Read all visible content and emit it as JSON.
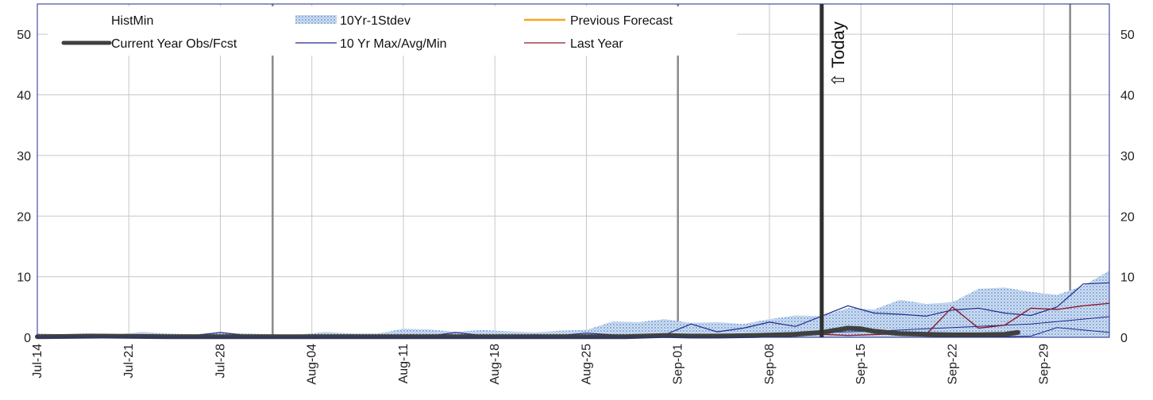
{
  "chart_data": {
    "type": "line",
    "title": "",
    "xlabel": "",
    "ylabel": "",
    "ylim": [
      0,
      55
    ],
    "y_ticks": [
      0,
      10,
      20,
      30,
      40,
      50
    ],
    "x_start": "Jul-14",
    "x_days": 82,
    "x_tick_labels": [
      "Jul-14",
      "Jul-21",
      "Jul-28",
      "Aug-04",
      "Aug-11",
      "Aug-18",
      "Aug-25",
      "Sep-01",
      "Sep-08",
      "Sep-15",
      "Sep-22",
      "Sep-29"
    ],
    "x_tick_days": [
      0,
      7,
      14,
      21,
      28,
      35,
      42,
      49,
      56,
      63,
      70,
      77
    ],
    "month_divider_days": [
      18,
      49,
      79
    ],
    "today_day": 60,
    "today_label": "⇧ Today",
    "grid": true,
    "legend": {
      "placement": "top",
      "items": [
        {
          "label": "HistMin",
          "swatch": "none"
        },
        {
          "label": "10Yr-1Stdev",
          "swatch": "pattern"
        },
        {
          "label": "Previous Forecast",
          "swatch": "line",
          "color": "#f5a623"
        },
        {
          "label": "Current Year Obs/Fcst",
          "swatch": "thick",
          "color": "#404040"
        },
        {
          "label": "10 Yr Max/Avg/Min",
          "swatch": "line",
          "color": "#1f2a8c"
        },
        {
          "label": "Last Year",
          "swatch": "line",
          "color": "#8b1a2b"
        }
      ]
    },
    "colors": {
      "stdev_fill": "#a9c4e8",
      "stdev_dots": "#5a86c4",
      "previous_forecast": "#f5a623",
      "current_year": "#404040",
      "ten_yr": "#1f2a8c",
      "last_year": "#8b1a2b",
      "grid": "#c8c8c8",
      "divider": "#8a8a8a",
      "frame": "#1f2a8c"
    },
    "series": {
      "stdev_upper": {
        "x": [
          0,
          2,
          4,
          6,
          8,
          10,
          12,
          14,
          16,
          18,
          20,
          22,
          24,
          26,
          28,
          30,
          32,
          34,
          36,
          38,
          40,
          42,
          44,
          46,
          48,
          50,
          52,
          54,
          56,
          58,
          60,
          62,
          64,
          66,
          68,
          70,
          72,
          74,
          76,
          78,
          80,
          82
        ],
        "y": [
          0.6,
          0.5,
          0.7,
          0.4,
          0.9,
          0.6,
          0.5,
          0.8,
          0.6,
          0.5,
          0.4,
          0.9,
          0.6,
          0.6,
          1.4,
          1.3,
          0.9,
          1.2,
          1.0,
          0.8,
          1.1,
          1.2,
          2.6,
          2.5,
          3.0,
          2.4,
          2.5,
          2.2,
          3.0,
          3.6,
          3.5,
          4.8,
          4.6,
          6.2,
          5.5,
          5.8,
          8.0,
          8.2,
          7.5,
          7.0,
          8.5,
          11.0
        ]
      },
      "stdev_lower": {
        "x": [
          0,
          82
        ],
        "y": [
          0,
          0
        ]
      },
      "ten_yr_max": {
        "x": [
          0,
          2,
          4,
          6,
          8,
          10,
          12,
          14,
          16,
          18,
          20,
          22,
          24,
          26,
          28,
          30,
          32,
          34,
          36,
          38,
          40,
          42,
          44,
          46,
          48,
          50,
          52,
          54,
          56,
          58,
          60,
          62,
          64,
          66,
          68,
          70,
          72,
          74,
          76,
          78,
          80,
          82
        ],
        "y": [
          0.3,
          0.4,
          0.3,
          0.2,
          0.4,
          0.2,
          0.3,
          0.8,
          0.3,
          0.2,
          0.3,
          0.2,
          0.4,
          0.2,
          0.3,
          0.2,
          0.8,
          0.3,
          0.2,
          0.4,
          0.3,
          0.7,
          0.4,
          0.3,
          0.4,
          2.2,
          0.9,
          1.5,
          2.5,
          1.8,
          3.5,
          5.2,
          4.0,
          3.8,
          3.5,
          4.5,
          4.8,
          4.0,
          3.6,
          5.0,
          8.8,
          9.0
        ]
      },
      "ten_yr_avg": {
        "x": [
          0,
          10,
          20,
          30,
          40,
          44,
          48,
          52,
          56,
          60,
          64,
          68,
          72,
          76,
          80,
          82
        ],
        "y": [
          0.2,
          0.2,
          0.2,
          0.2,
          0.2,
          0.3,
          0.4,
          0.5,
          0.6,
          0.8,
          1.0,
          1.4,
          1.8,
          2.2,
          3.0,
          3.4
        ]
      },
      "ten_yr_min": {
        "x": [
          0,
          60,
          72,
          76,
          78,
          80,
          82
        ],
        "y": [
          0,
          0,
          0,
          0.2,
          1.6,
          1.2,
          0.8
        ]
      },
      "last_year": {
        "x": [
          0,
          5,
          10,
          15,
          20,
          25,
          30,
          35,
          40,
          45,
          50,
          55,
          58,
          60,
          62,
          66,
          68,
          70,
          72,
          74,
          76,
          78,
          80,
          82
        ],
        "y": [
          0.2,
          0.3,
          0.2,
          0.2,
          0.3,
          0.2,
          0.2,
          0.3,
          0.2,
          0.2,
          0.2,
          0.3,
          0.4,
          0.5,
          0.3,
          0.6,
          0.5,
          5.0,
          1.5,
          2.0,
          4.8,
          4.6,
          5.2,
          5.6
        ]
      },
      "current_year": {
        "x": [
          0,
          5,
          10,
          15,
          20,
          25,
          30,
          35,
          40,
          45,
          48,
          50,
          52,
          55,
          58,
          60,
          62,
          63,
          64,
          66,
          68,
          70,
          72,
          74,
          75
        ],
        "y": [
          0.1,
          0.2,
          0.1,
          0.1,
          0.1,
          0.1,
          0.1,
          0.1,
          0.1,
          0.1,
          0.3,
          0.2,
          0.2,
          0.3,
          0.5,
          0.8,
          1.5,
          1.4,
          1.0,
          0.6,
          0.5,
          0.4,
          0.4,
          0.5,
          0.8
        ]
      }
    }
  }
}
